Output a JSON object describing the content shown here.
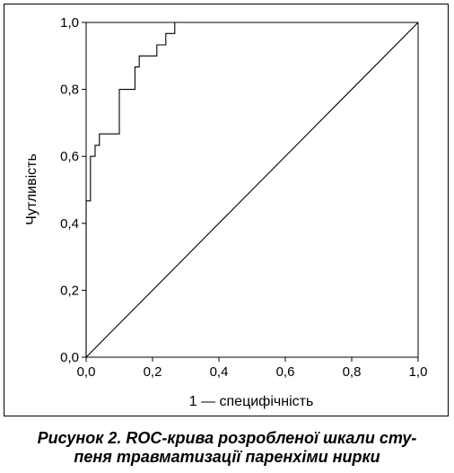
{
  "chart_data": {
    "type": "line",
    "xlabel": "1 — специфічність",
    "ylabel": "Чутливість",
    "xlim": [
      0,
      1
    ],
    "ylim": [
      0,
      1
    ],
    "x_ticks": [
      "0,0",
      "0,2",
      "0,4",
      "0,6",
      "0,8",
      "1,0"
    ],
    "y_ticks": [
      "0,0",
      "0,2",
      "0,4",
      "0,6",
      "0,8",
      "1,0"
    ],
    "grid": false,
    "series": [
      {
        "x": [
          0,
          0,
          0.013,
          0.013,
          0.027,
          0.027,
          0.04,
          0.04,
          0.053,
          0.053,
          0.1,
          0.1,
          0.147,
          0.147,
          0.16,
          0.16,
          0.173,
          0.173,
          0.213,
          0.213,
          0.24,
          0.24,
          0.26,
          0.26,
          0.267,
          0.267,
          1.0
        ],
        "y": [
          0,
          0.467,
          0.467,
          0.6,
          0.6,
          0.633,
          0.633,
          0.667,
          0.667,
          0.667,
          0.667,
          0.8,
          0.8,
          0.867,
          0.867,
          0.9,
          0.9,
          0.9,
          0.9,
          0.933,
          0.933,
          0.967,
          0.967,
          0.967,
          0.967,
          1.0,
          1.0
        ]
      },
      {
        "x": [
          0,
          1
        ],
        "y": [
          0,
          1
        ]
      }
    ],
    "colors": {
      "line": "#000000"
    }
  },
  "caption": {
    "line1": "Рисунок 2. ROC-крива розробленої шкали сту-",
    "line2": "пеня травматизації паренхіми нирки"
  }
}
